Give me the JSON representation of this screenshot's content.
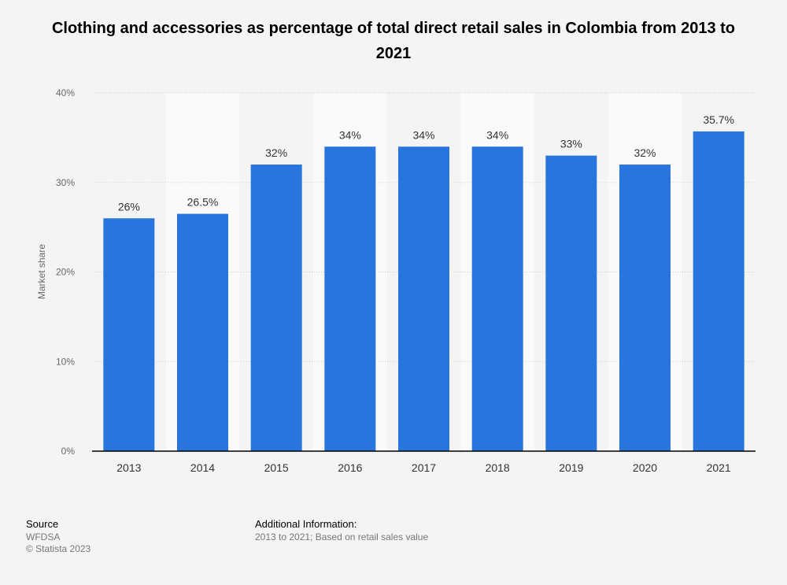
{
  "chart_data": {
    "type": "bar",
    "title": "Clothing and accessories as percentage of total direct retail sales in Colombia from 2013 to 2021",
    "xlabel": "",
    "ylabel": "Market share",
    "categories": [
      "2013",
      "2014",
      "2015",
      "2016",
      "2017",
      "2018",
      "2019",
      "2020",
      "2021"
    ],
    "values": [
      26,
      26.5,
      32,
      34,
      34,
      34,
      33,
      32,
      35.7
    ],
    "data_labels": [
      "26%",
      "26.5%",
      "32%",
      "34%",
      "34%",
      "34%",
      "33%",
      "32%",
      "35.7%"
    ],
    "ylim": [
      0,
      40
    ],
    "yticks": [
      0,
      10,
      20,
      30,
      40
    ],
    "ytick_labels": [
      "0%",
      "10%",
      "20%",
      "30%",
      "40%"
    ],
    "grid": true,
    "bar_color": "#2876dd"
  },
  "footer": {
    "source_title": "Source",
    "source_lines": [
      "WFDSA",
      "© Statista 2023"
    ],
    "additional_title": "Additional Information:",
    "additional_text": "2013 to 2021; Based on retail sales value"
  }
}
